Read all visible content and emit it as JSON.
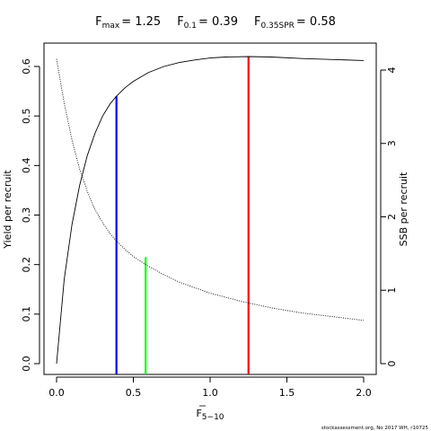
{
  "chart_data": {
    "type": "line",
    "title_parts": [
      {
        "main": "F",
        "sub": "max",
        "value": "= 1.25"
      },
      {
        "main": "F",
        "sub": "0.1",
        "value": "= 0.39"
      },
      {
        "main": "F",
        "sub": "0.35SPR",
        "value": "= 0.58"
      }
    ],
    "xlabel": {
      "main": "F",
      "sub": "5−10"
    },
    "ylabel": "Yield per recruit",
    "y2label": "SSB per recruit",
    "xlim": [
      0,
      2.0
    ],
    "ylim": [
      0,
      0.6
    ],
    "y2lim": [
      0,
      4
    ],
    "xticks": [
      "0.0",
      "0.5",
      "1.0",
      "1.5",
      "2.0"
    ],
    "yticks": [
      "0.0",
      "0.1",
      "0.2",
      "0.3",
      "0.4",
      "0.5",
      "0.6"
    ],
    "y2ticks": [
      "0",
      "1",
      "2",
      "3",
      "4"
    ],
    "grid": false,
    "series": [
      {
        "axis": "left",
        "style": "solid",
        "x": [
          0,
          0.05,
          0.1,
          0.15,
          0.2,
          0.25,
          0.3,
          0.35,
          0.39,
          0.45,
          0.5,
          0.6,
          0.7,
          0.8,
          0.9,
          1.0,
          1.1,
          1.25,
          1.4,
          1.6,
          1.8,
          2.0
        ],
        "values": [
          0.0,
          0.17,
          0.28,
          0.36,
          0.42,
          0.465,
          0.5,
          0.525,
          0.54,
          0.558,
          0.57,
          0.588,
          0.6,
          0.608,
          0.613,
          0.617,
          0.619,
          0.62,
          0.619,
          0.616,
          0.614,
          0.612
        ]
      },
      {
        "axis": "right",
        "style": "dotted",
        "x": [
          0,
          0.05,
          0.1,
          0.15,
          0.2,
          0.25,
          0.3,
          0.35,
          0.39,
          0.45,
          0.5,
          0.58,
          0.7,
          0.8,
          1.0,
          1.2,
          1.4,
          1.6,
          1.8,
          2.0
        ],
        "values": [
          4.15,
          3.55,
          3.05,
          2.65,
          2.35,
          2.1,
          1.92,
          1.77,
          1.67,
          1.55,
          1.46,
          1.35,
          1.21,
          1.11,
          0.96,
          0.85,
          0.76,
          0.69,
          0.64,
          0.59
        ]
      }
    ],
    "reference_lines": [
      {
        "name": "F0.1",
        "x": 0.39,
        "y": 0.54,
        "color": "#0000ff"
      },
      {
        "name": "F0.35SPR",
        "x": 0.58,
        "y": 0.215,
        "color": "#00ff00"
      },
      {
        "name": "Fmax",
        "x": 1.25,
        "y": 0.62,
        "color": "#ff0000"
      }
    ]
  },
  "footer": "stockassessment.org, No  2017  WH, r10725"
}
